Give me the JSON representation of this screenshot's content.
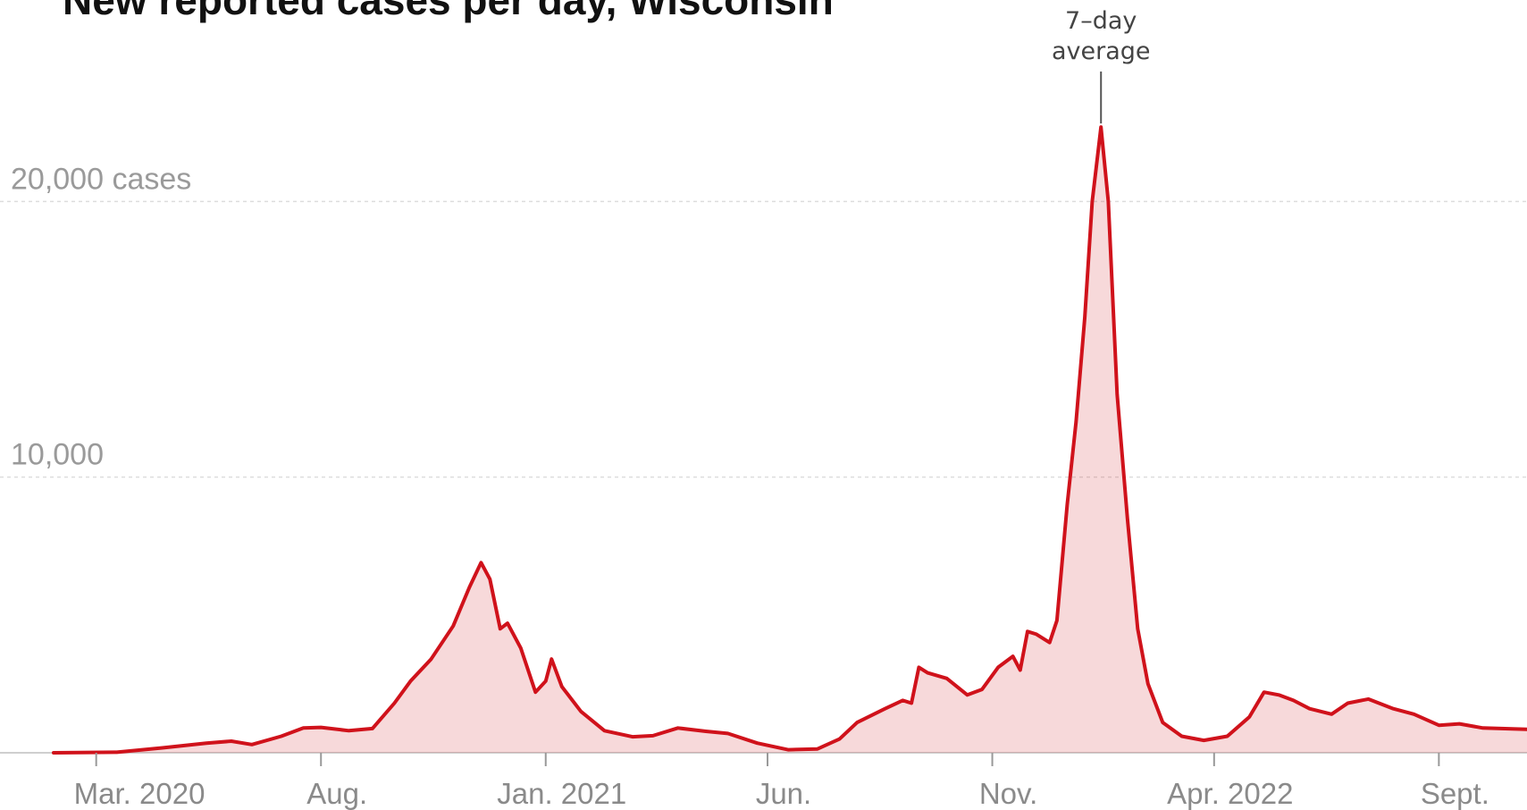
{
  "chart_data": {
    "type": "area",
    "title": "New reported cases per day, Wisconsin",
    "series_annotation_line1": "7–day",
    "series_annotation_line2": "average",
    "annotation_date": "2022-01-14",
    "xlim": [
      "2020-02-01",
      "2022-10-31"
    ],
    "ylim": [
      0,
      24000
    ],
    "yticks": [
      {
        "value": 10000,
        "label": "10,000"
      },
      {
        "value": 20000,
        "label": "20,000 cases"
      }
    ],
    "xticks": [
      {
        "date": "2020-03-01",
        "label": "Mar. 2020"
      },
      {
        "date": "2020-08-01",
        "label": "Aug."
      },
      {
        "date": "2021-01-01",
        "label": "Jan. 2021"
      },
      {
        "date": "2021-06-01",
        "label": "Jun."
      },
      {
        "date": "2021-11-01",
        "label": "Nov."
      },
      {
        "date": "2022-04-01",
        "label": "Apr. 2022"
      },
      {
        "date": "2022-09-01",
        "label": "Sept."
      }
    ],
    "series": [
      {
        "color": "#d0121b",
        "points": [
          [
            "2020-02-01",
            0
          ],
          [
            "2020-03-15",
            20
          ],
          [
            "2020-04-15",
            180
          ],
          [
            "2020-05-15",
            350
          ],
          [
            "2020-06-01",
            420
          ],
          [
            "2020-06-15",
            300
          ],
          [
            "2020-07-05",
            600
          ],
          [
            "2020-07-20",
            900
          ],
          [
            "2020-08-01",
            920
          ],
          [
            "2020-08-20",
            800
          ],
          [
            "2020-09-05",
            880
          ],
          [
            "2020-09-20",
            1800
          ],
          [
            "2020-10-01",
            2600
          ],
          [
            "2020-10-15",
            3400
          ],
          [
            "2020-10-30",
            4600
          ],
          [
            "2020-11-10",
            6000
          ],
          [
            "2020-11-18",
            6900
          ],
          [
            "2020-11-24",
            6300
          ],
          [
            "2020-12-01",
            4500
          ],
          [
            "2020-12-06",
            4700
          ],
          [
            "2020-12-15",
            3800
          ],
          [
            "2020-12-25",
            2200
          ],
          [
            "2021-01-01",
            2600
          ],
          [
            "2021-01-05",
            3400
          ],
          [
            "2021-01-12",
            2400
          ],
          [
            "2021-01-25",
            1500
          ],
          [
            "2021-02-10",
            800
          ],
          [
            "2021-03-01",
            580
          ],
          [
            "2021-03-15",
            620
          ],
          [
            "2021-04-01",
            900
          ],
          [
            "2021-04-20",
            780
          ],
          [
            "2021-05-05",
            700
          ],
          [
            "2021-05-25",
            350
          ],
          [
            "2021-06-15",
            110
          ],
          [
            "2021-07-05",
            140
          ],
          [
            "2021-07-20",
            500
          ],
          [
            "2021-08-01",
            1100
          ],
          [
            "2021-08-20",
            1600
          ],
          [
            "2021-09-01",
            1900
          ],
          [
            "2021-09-07",
            1800
          ],
          [
            "2021-09-12",
            3100
          ],
          [
            "2021-09-18",
            2900
          ],
          [
            "2021-10-01",
            2700
          ],
          [
            "2021-10-15",
            2100
          ],
          [
            "2021-10-25",
            2300
          ],
          [
            "2021-11-05",
            3100
          ],
          [
            "2021-11-15",
            3500
          ],
          [
            "2021-11-20",
            3000
          ],
          [
            "2021-11-25",
            4400
          ],
          [
            "2021-12-01",
            4300
          ],
          [
            "2021-12-10",
            4000
          ],
          [
            "2021-12-15",
            4800
          ],
          [
            "2021-12-22",
            9000
          ],
          [
            "2021-12-28",
            12000
          ],
          [
            "2022-01-03",
            15800
          ],
          [
            "2022-01-08",
            20000
          ],
          [
            "2022-01-14",
            22700
          ],
          [
            "2022-01-19",
            20000
          ],
          [
            "2022-01-25",
            13000
          ],
          [
            "2022-02-01",
            8500
          ],
          [
            "2022-02-08",
            4500
          ],
          [
            "2022-02-15",
            2500
          ],
          [
            "2022-02-25",
            1100
          ],
          [
            "2022-03-10",
            600
          ],
          [
            "2022-03-25",
            450
          ],
          [
            "2022-04-10",
            600
          ],
          [
            "2022-04-25",
            1300
          ],
          [
            "2022-05-05",
            2200
          ],
          [
            "2022-05-15",
            2100
          ],
          [
            "2022-05-25",
            1900
          ],
          [
            "2022-06-05",
            1600
          ],
          [
            "2022-06-20",
            1400
          ],
          [
            "2022-07-01",
            1800
          ],
          [
            "2022-07-15",
            1950
          ],
          [
            "2022-08-01",
            1600
          ],
          [
            "2022-08-15",
            1400
          ],
          [
            "2022-09-01",
            1000
          ],
          [
            "2022-09-15",
            1050
          ],
          [
            "2022-10-01",
            900
          ],
          [
            "2022-10-31",
            850
          ]
        ]
      }
    ]
  }
}
